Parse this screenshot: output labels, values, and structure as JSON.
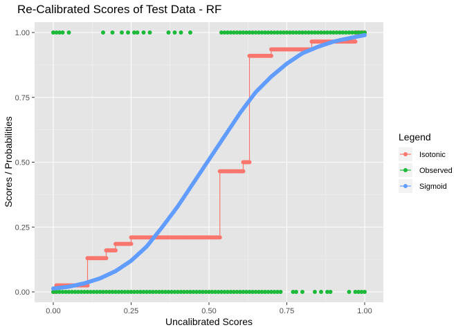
{
  "chart_data": {
    "type": "scatter",
    "title": "Re-Calibrated Scores of Test Data - RF",
    "xlabel": "Uncalibrated Scores",
    "ylabel": "Scores / Probabilities",
    "xlim": [
      -0.06,
      1.06
    ],
    "ylim": [
      -0.04,
      1.04
    ],
    "xticks": [
      "0.00",
      "0.25",
      "0.50",
      "0.75",
      "1.00"
    ],
    "yticks": [
      "0.00",
      "0.25",
      "0.50",
      "0.75",
      "1.00"
    ],
    "grid": true,
    "legend": {
      "title": "Legend",
      "placement": "right",
      "entries": [
        "Isotonic",
        "Observed",
        "Sigmoid"
      ]
    },
    "colors": {
      "Isotonic": "#f8766d",
      "Observed": "#1dba3a",
      "Sigmoid": "#619cff",
      "panel": "#e5e5e5",
      "grid_major": "#ffffff",
      "grid_minor": "#f2f2f2"
    },
    "series": [
      {
        "name": "Isotonic",
        "style": "step-line-points",
        "steps": [
          [
            0.0,
            0.0
          ],
          [
            0.01,
            0.025
          ],
          [
            0.11,
            0.13
          ],
          [
            0.17,
            0.16
          ],
          [
            0.2,
            0.185
          ],
          [
            0.25,
            0.21
          ],
          [
            0.535,
            0.465
          ],
          [
            0.61,
            0.5
          ],
          [
            0.63,
            0.91
          ],
          [
            0.7,
            0.935
          ],
          [
            0.83,
            0.965
          ],
          [
            0.97,
            1.0
          ]
        ],
        "x_end": 1.0
      },
      {
        "name": "Observed",
        "style": "points",
        "positive_x": [
          0.0,
          0.01,
          0.02,
          0.03,
          0.05,
          0.16,
          0.19,
          0.22,
          0.24,
          0.26,
          0.27,
          0.29,
          0.31,
          0.37,
          0.39,
          0.41,
          0.44,
          0.54,
          0.55,
          0.56,
          0.57,
          0.58,
          0.59,
          0.6,
          0.61,
          0.62,
          0.63,
          0.64,
          0.65,
          0.66,
          0.67,
          0.68,
          0.69,
          0.7,
          0.71,
          0.72,
          0.73,
          0.74,
          0.75,
          0.76,
          0.77,
          0.78,
          0.79,
          0.8,
          0.81,
          0.82,
          0.83,
          0.84,
          0.85,
          0.86,
          0.87,
          0.88,
          0.89,
          0.9,
          0.91,
          0.92,
          0.93,
          0.94,
          0.95,
          0.96,
          0.97,
          0.98,
          0.99,
          1.0
        ],
        "negative_x": [
          0.0,
          0.01,
          0.02,
          0.03,
          0.04,
          0.05,
          0.06,
          0.07,
          0.08,
          0.09,
          0.1,
          0.11,
          0.12,
          0.13,
          0.14,
          0.15,
          0.16,
          0.17,
          0.18,
          0.19,
          0.2,
          0.21,
          0.22,
          0.23,
          0.24,
          0.25,
          0.26,
          0.27,
          0.28,
          0.29,
          0.3,
          0.31,
          0.32,
          0.33,
          0.34,
          0.35,
          0.36,
          0.37,
          0.38,
          0.39,
          0.4,
          0.41,
          0.42,
          0.43,
          0.44,
          0.45,
          0.46,
          0.47,
          0.48,
          0.49,
          0.5,
          0.51,
          0.52,
          0.53,
          0.54,
          0.55,
          0.56,
          0.57,
          0.58,
          0.59,
          0.6,
          0.61,
          0.62,
          0.63,
          0.64,
          0.65,
          0.66,
          0.67,
          0.68,
          0.69,
          0.7,
          0.71,
          0.72,
          0.73,
          0.77,
          0.78,
          0.8,
          0.84,
          0.86,
          0.88,
          0.89,
          0.95,
          0.97,
          0.98,
          0.99,
          1.0
        ],
        "positive_y": 1.0,
        "negative_y": 0.0
      },
      {
        "name": "Sigmoid",
        "style": "line-points",
        "x": [
          0.0,
          0.05,
          0.1,
          0.15,
          0.2,
          0.25,
          0.3,
          0.35,
          0.4,
          0.45,
          0.5,
          0.55,
          0.6,
          0.65,
          0.7,
          0.75,
          0.8,
          0.85,
          0.9,
          0.95,
          1.0
        ],
        "y": [
          0.013,
          0.02,
          0.033,
          0.052,
          0.08,
          0.12,
          0.175,
          0.25,
          0.33,
          0.42,
          0.51,
          0.6,
          0.69,
          0.77,
          0.83,
          0.88,
          0.92,
          0.945,
          0.965,
          0.978,
          0.99
        ]
      }
    ]
  }
}
